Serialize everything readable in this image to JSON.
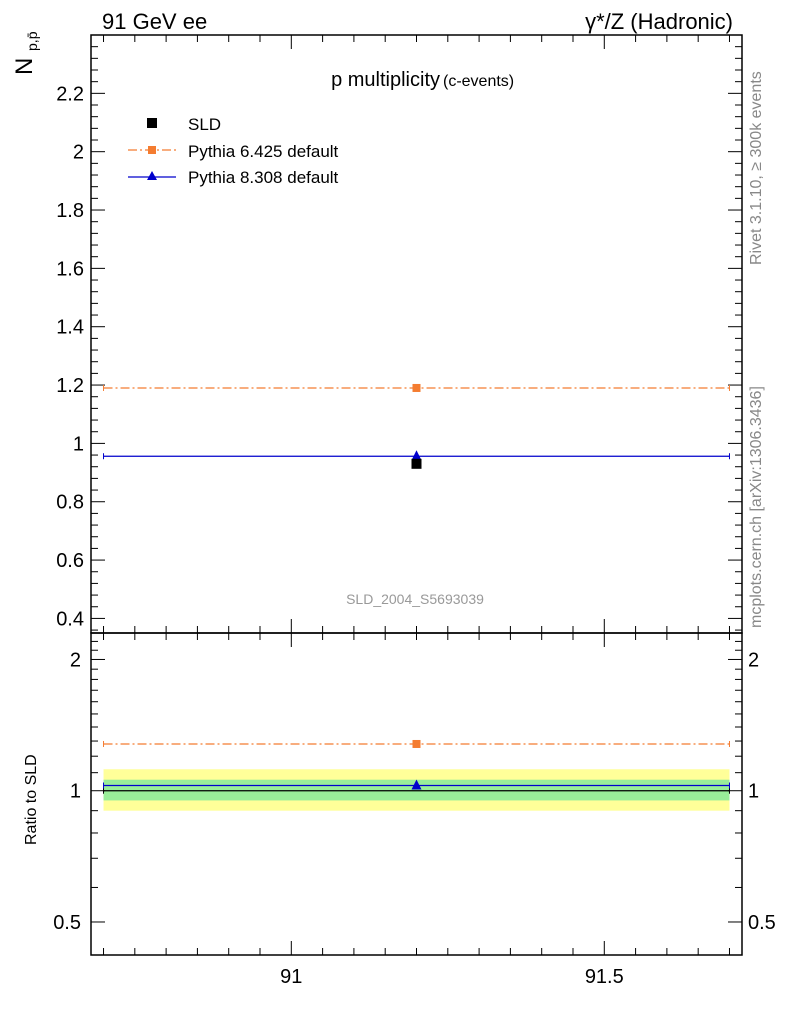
{
  "header": {
    "left": "91 GeV ee",
    "right": "γ*/Z (Hadronic)"
  },
  "side_labels": {
    "rivet": "Rivet 3.1.10, ≥ 300k events",
    "mcplots": "mcplots.cern.ch [arXiv:1306.3436]"
  },
  "chart_data": [
    {
      "type": "scatter",
      "panel": "main",
      "title": "p multiplicity",
      "subtitle": "(c-events)",
      "ylabel": "N",
      "ylabel_sub": "p,p̄",
      "watermark": "SLD_2004_S5693039",
      "x": [
        91.2
      ],
      "xlim": [
        90.68,
        91.72
      ],
      "ylim": [
        0.35,
        2.4
      ],
      "yticks": [
        0.4,
        0.6,
        0.8,
        1,
        1.2,
        1.4,
        1.6,
        1.8,
        2,
        2.2
      ],
      "ytick_labels": [
        "0.4",
        "0.6",
        "0.8",
        "1",
        "1.2",
        "1.4",
        "1.6",
        "1.8",
        "2",
        "2.2"
      ],
      "legend_position": "top-left",
      "series": [
        {
          "name": "SLD",
          "values": [
            0.93
          ],
          "color": "#000000",
          "marker": "square",
          "line": "none"
        },
        {
          "name": "Pythia 6.425 default",
          "values": [
            1.19
          ],
          "color": "#f47c30",
          "marker": "square",
          "line": "dash-dot"
        },
        {
          "name": "Pythia 8.308 default",
          "values": [
            0.956
          ],
          "color": "#0000cc",
          "marker": "triangle",
          "line": "solid"
        }
      ]
    },
    {
      "type": "scatter",
      "panel": "ratio",
      "ylabel": "Ratio to SLD",
      "x": [
        91.2
      ],
      "xlim": [
        90.68,
        91.72
      ],
      "ylim": [
        0.42,
        2.3
      ],
      "log_y": true,
      "yticks": [
        0.5,
        1,
        2
      ],
      "ytick_labels": [
        "0.5",
        "1",
        "2"
      ],
      "xticks": [
        91,
        91.5
      ],
      "xtick_labels": [
        "91",
        "91.5"
      ],
      "bands": [
        {
          "name": "total uncertainty",
          "low": 0.9,
          "high": 1.12,
          "color": "#ffff99"
        },
        {
          "name": "statistical uncertainty",
          "low": 0.95,
          "high": 1.06,
          "color": "#99ee99"
        }
      ],
      "series": [
        {
          "name": "SLD",
          "values": [
            1.0
          ],
          "color": "#000000",
          "line": "solid"
        },
        {
          "name": "Pythia 6.425 default",
          "values": [
            1.28
          ],
          "color": "#f47c30",
          "marker": "square",
          "line": "dash-dot"
        },
        {
          "name": "Pythia 8.308 default",
          "values": [
            1.028
          ],
          "color": "#0000cc",
          "marker": "triangle",
          "line": "solid"
        }
      ]
    }
  ]
}
